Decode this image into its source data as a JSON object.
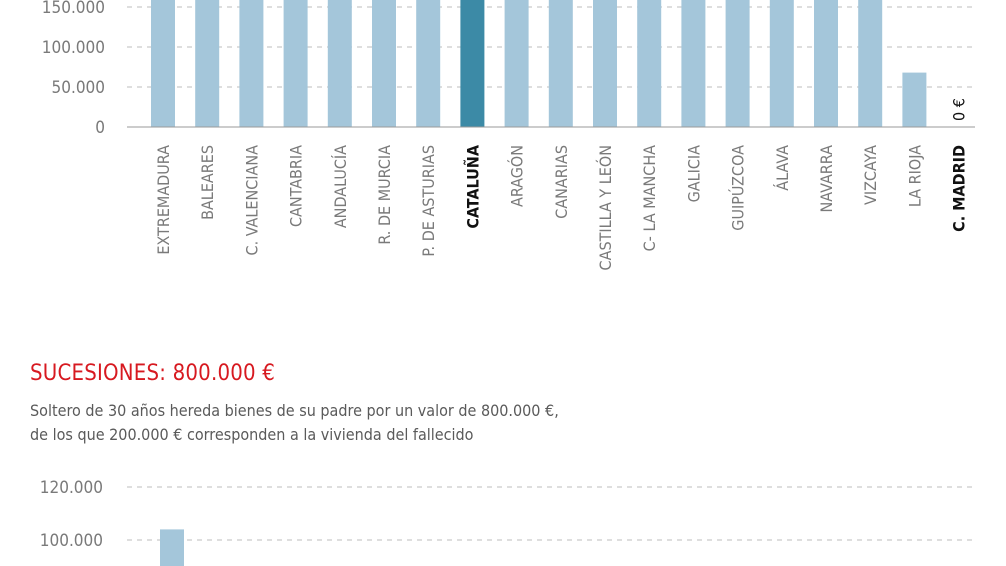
{
  "chart_data": [
    {
      "type": "bar",
      "categories": [
        "EXTREMADURA",
        "BALEARES",
        "C. VALENCIANA",
        "CANTABRIA",
        "ANDALUCÍA",
        "R. DE MURCIA",
        "P. DE ASTURIAS",
        "CATALUÑA",
        "ARAGÓN",
        "CANARIAS",
        "CASTILLA Y LEÓN",
        "C- LA MANCHA",
        "GALICIA",
        "GUIPÚZCOA",
        "ÁLAVA",
        "NAVARRA",
        "VIZCAYA",
        "LA RIOJA",
        "C. MADRID"
      ],
      "values": [
        160000,
        160000,
        160000,
        160000,
        160000,
        160000,
        160000,
        160000,
        160000,
        160000,
        160000,
        160000,
        160000,
        160000,
        160000,
        160000,
        160000,
        68000,
        0
      ],
      "highlight": [
        "CATALUÑA",
        "C. MADRID"
      ],
      "bar_color": "#a4c6da",
      "highlight_color": "#3c8aa6",
      "yticks": [
        "150.000",
        "100.000",
        "50.000",
        "0"
      ],
      "ytick_values": [
        150000,
        100000,
        50000,
        0
      ],
      "zero_label": "0 €",
      "grid": true
    },
    {
      "type": "bar",
      "title": "SUCESIONES: 800.000 €",
      "description": [
        "Soltero de 30 años hereda bienes de su padre por un valor de 800.000 €,",
        "de los que 200.000 € corresponden a la vivienda del fallecido"
      ],
      "yticks": [
        "120.000",
        "100.000"
      ],
      "ytick_values": [
        120000,
        100000
      ],
      "values": [
        104000
      ],
      "bar_color": "#a4c6da",
      "grid": true
    }
  ],
  "colors": {
    "title": "#d71920",
    "grid": "#bdbdbd",
    "text": "#7a7a7a"
  }
}
